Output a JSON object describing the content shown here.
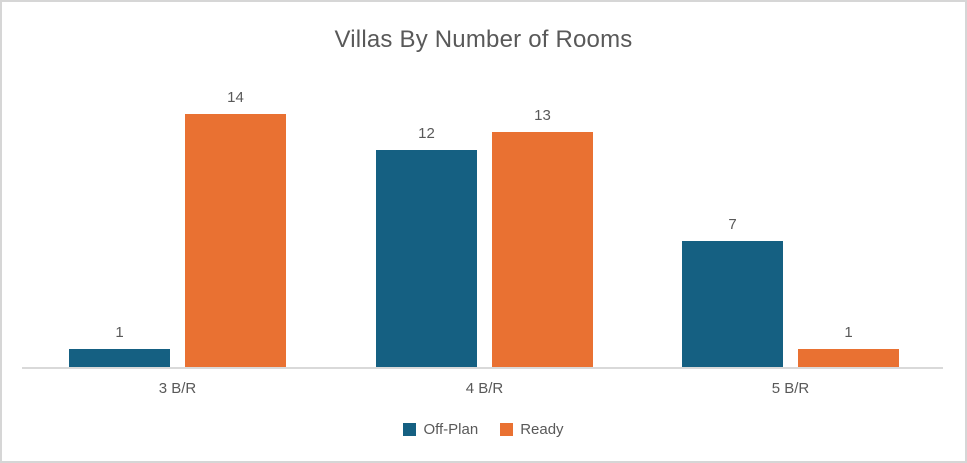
{
  "chart_data": {
    "type": "bar",
    "title": "Villas By Number of Rooms",
    "categories": [
      "3 B/R",
      "4 B/R",
      "5 B/R"
    ],
    "series": [
      {
        "name": "Off-Plan",
        "color": "#156082",
        "values": [
          1,
          12,
          7
        ]
      },
      {
        "name": "Ready",
        "color": "#E97132",
        "values": [
          14,
          13,
          1
        ]
      }
    ],
    "data_labels": [
      {
        "category": "3 B/R",
        "off_plan": "1",
        "ready": "14"
      },
      {
        "category": "4 B/R",
        "off_plan": "12",
        "ready": "13"
      },
      {
        "category": "5 B/R",
        "off_plan": "7",
        "ready": "1"
      }
    ],
    "value_axis": {
      "min": 0,
      "max_implied": 14,
      "visible": false
    },
    "grid": false,
    "legend_position": "bottom",
    "legend_labels": [
      "Off-Plan",
      "Ready"
    ],
    "colors": {
      "off_plan": "#156082",
      "ready": "#E97132",
      "axis_line": "#d9d9d9",
      "text": "#595959",
      "frame_border": "#d6d6d6"
    }
  }
}
